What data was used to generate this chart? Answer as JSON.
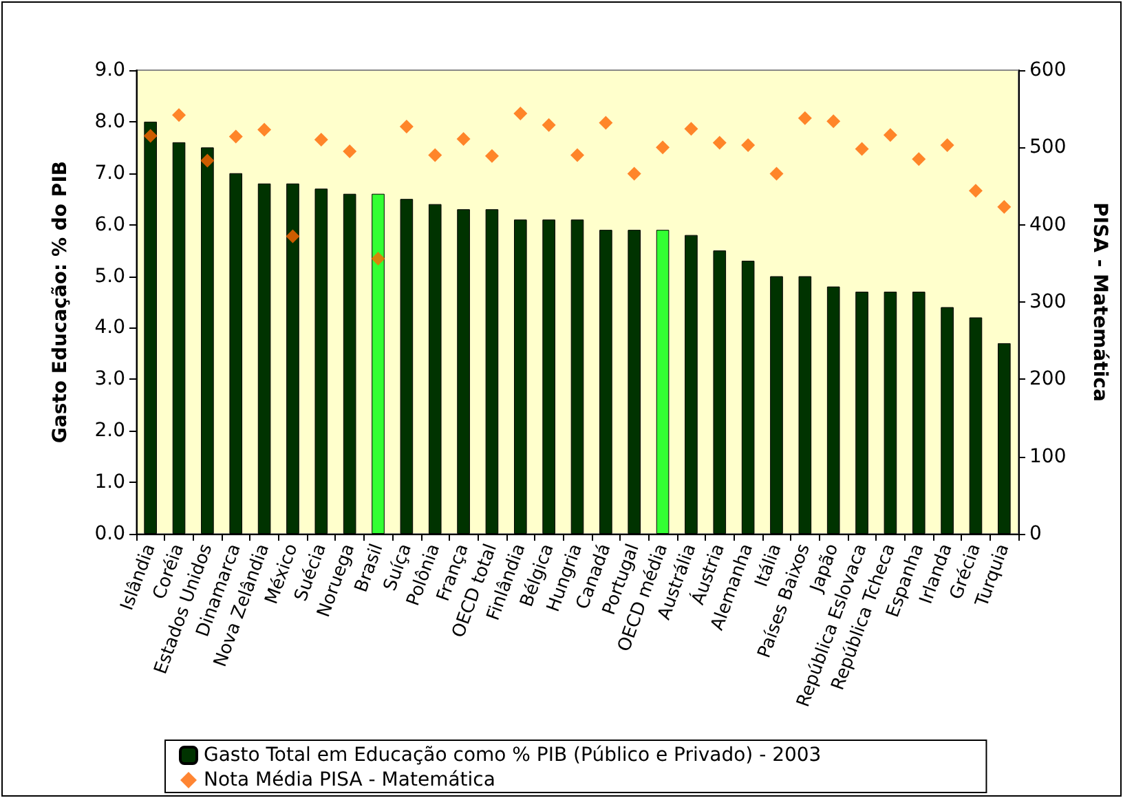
{
  "chart_data": {
    "type": "bar",
    "categories": [
      "Islândia",
      "Coréia",
      "Estados Unidos",
      "Dinamarca",
      "Nova Zelândia",
      "México",
      "Suécia",
      "Noruega",
      "Brasil",
      "Suíça",
      "Polônia",
      "França",
      "OECD total",
      "Finlândia",
      "Bélgica",
      "Hungria",
      "Canadá",
      "Portugal",
      "OECD média",
      "Austrália",
      "Áustria",
      "Alemanha",
      "Itália",
      "Países Baixos",
      "Japão",
      "República Eslovaca",
      "República Tcheca",
      "Espanha",
      "Irlanda",
      "Grécia",
      "Turquia"
    ],
    "ylabel": "Gasto Educação: % do PIB",
    "y2label": "PISA - Matemática",
    "ylim": [
      0,
      9
    ],
    "yticks": [
      {
        "value": 0,
        "label": "0.0"
      },
      {
        "value": 1,
        "label": "1.0"
      },
      {
        "value": 2,
        "label": "2.0"
      },
      {
        "value": 3,
        "label": "3.0"
      },
      {
        "value": 4,
        "label": "4.0"
      },
      {
        "value": 5,
        "label": "5.0"
      },
      {
        "value": 6,
        "label": "6.0"
      },
      {
        "value": 7,
        "label": "7.0"
      },
      {
        "value": 8,
        "label": "8.0"
      },
      {
        "value": 9,
        "label": "9.0"
      }
    ],
    "y2lim": [
      0,
      600
    ],
    "y2ticks": [
      0,
      100,
      200,
      300,
      400,
      500,
      600
    ],
    "series": [
      {
        "name": "Gasto Total em Educação como % PIB (Público e Privado) - 2003",
        "type": "bar",
        "color": "#003300",
        "colors": [
          "#003300",
          "#003300",
          "#003300",
          "#003300",
          "#003300",
          "#003300",
          "#003300",
          "#003300",
          "#33ff33",
          "#003300",
          "#003300",
          "#003300",
          "#003300",
          "#003300",
          "#003300",
          "#003300",
          "#003300",
          "#003300",
          "#33ff33",
          "#003300",
          "#003300",
          "#003300",
          "#003300",
          "#003300",
          "#003300",
          "#003300",
          "#003300",
          "#003300",
          "#003300",
          "#003300",
          "#003300"
        ],
        "values": [
          8.0,
          7.6,
          7.5,
          7.0,
          6.8,
          6.8,
          6.7,
          6.6,
          6.6,
          6.5,
          6.4,
          6.3,
          6.3,
          6.1,
          6.1,
          6.1,
          5.9,
          5.9,
          5.9,
          5.8,
          5.5,
          5.3,
          5.0,
          5.0,
          4.8,
          4.7,
          4.7,
          4.7,
          4.4,
          4.2,
          3.7
        ]
      },
      {
        "name": "Nota Média PISA - Matemática",
        "type": "scatter",
        "axis": "y2",
        "color": "#ff6600",
        "marker": "diamond",
        "values": [
          515,
          542,
          483,
          514,
          523,
          385,
          510,
          495,
          356,
          527,
          490,
          511,
          489,
          544,
          529,
          490,
          532,
          466,
          500,
          524,
          506,
          503,
          466,
          538,
          534,
          498,
          516,
          485,
          503,
          444,
          423
        ]
      }
    ],
    "legend": "bottom",
    "grid": false
  }
}
